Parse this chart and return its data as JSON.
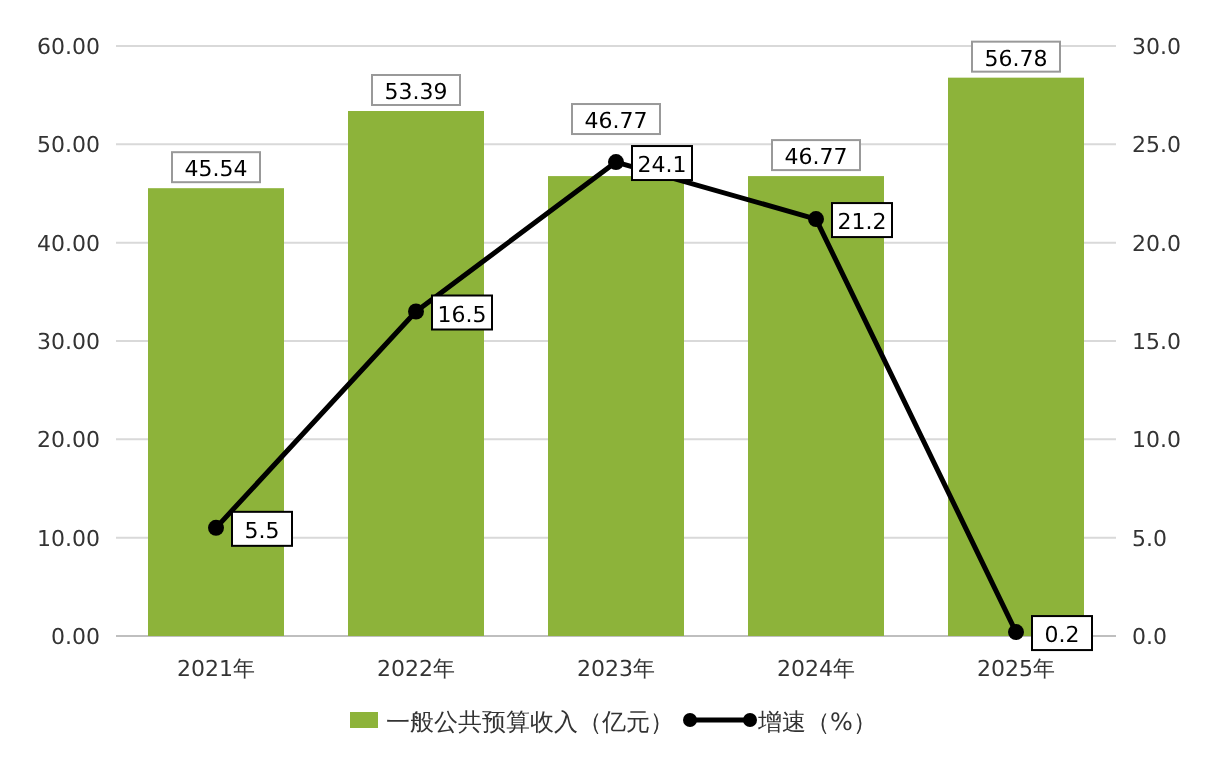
{
  "chart_data": {
    "type": "bar",
    "categories": [
      "2021年",
      "2022年",
      "2023年",
      "2024年",
      "2025年"
    ],
    "series": [
      {
        "name": "一般公共预算收入（亿元）",
        "color": "#8db33a",
        "values": [
          45.54,
          53.39,
          46.77,
          46.77,
          56.78
        ]
      },
      {
        "name": "增速（%）",
        "type": "line",
        "axis": "y2",
        "color": "#000000",
        "values": [
          5.5,
          16.5,
          24.1,
          21.2,
          0.2
        ]
      }
    ],
    "ylim": [
      0,
      60
    ],
    "yticks": [
      {
        "value": 0,
        "label": "0.00"
      },
      {
        "value": 10,
        "label": "10.00"
      },
      {
        "value": 20,
        "label": "20.00"
      },
      {
        "value": 30,
        "label": "30.00"
      },
      {
        "value": 40,
        "label": "40.00"
      },
      {
        "value": 50,
        "label": "50.00"
      },
      {
        "value": 60,
        "label": "60.00"
      }
    ],
    "y2lim": [
      0,
      30
    ],
    "y2ticks": [
      {
        "value": 0,
        "label": "0.0"
      },
      {
        "value": 5,
        "label": "5.0"
      },
      {
        "value": 10,
        "label": "10.0"
      },
      {
        "value": 15,
        "label": "15.0"
      },
      {
        "value": 20,
        "label": "20.0"
      },
      {
        "value": 25,
        "label": "25.0"
      },
      {
        "value": 30,
        "label": "30.0"
      }
    ],
    "grid": "y",
    "legend": "bottom",
    "marker": "circle",
    "line_style": "solid",
    "data_labels": true
  }
}
